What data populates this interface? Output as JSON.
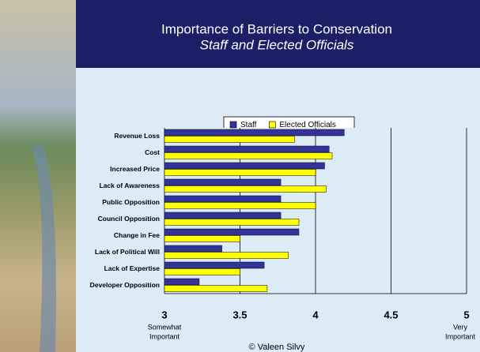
{
  "chart_data": {
    "type": "hbar",
    "title": "Importance of Barriers to Conservation",
    "subtitle": "Staff and Elected Officials",
    "categories": [
      "Revenue Loss",
      "Cost",
      "Increased Price",
      "Lack of Awareness",
      "Public Opposition",
      "Council Opposition",
      "Change in Fee",
      "Lack of Political Will",
      "Lack of Expertise",
      "Developer Opposition"
    ],
    "series": [
      {
        "name": "Staff",
        "color": "#333399",
        "values": [
          4.19,
          4.09,
          4.06,
          3.77,
          3.77,
          3.77,
          3.89,
          3.38,
          3.66,
          3.23
        ]
      },
      {
        "name": "Elected Officials",
        "color": "#ffff00",
        "values": [
          3.86,
          4.11,
          4.0,
          4.07,
          4.0,
          3.89,
          3.5,
          3.82,
          3.5,
          3.68
        ]
      }
    ],
    "xlim": [
      3,
      5
    ],
    "xticks": [
      3,
      3.5,
      4,
      4.5,
      5
    ],
    "grid": true,
    "legend": "top",
    "x_end_labels": {
      "left": [
        "Somewhat",
        "Important"
      ],
      "right": [
        "Very",
        "Important"
      ]
    },
    "footer": "© Valeen Silvy"
  }
}
